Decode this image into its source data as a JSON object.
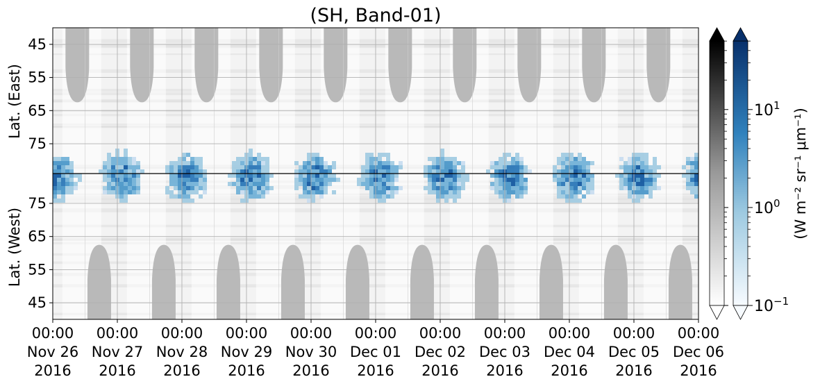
{
  "chart_data": {
    "type": "heatmap",
    "title": "(SH, Band-01)",
    "panels": [
      {
        "ylabel": "Lat. (East)",
        "yticks": [
          "45",
          "55",
          "65",
          "75"
        ],
        "ylim": [
          40,
          84
        ]
      },
      {
        "ylabel": "Lat. (West)",
        "yticks": [
          "75",
          "65",
          "55",
          "45"
        ],
        "ylim": [
          84,
          40
        ]
      }
    ],
    "xticks": [
      {
        "time": "00:00",
        "date": "Nov 26",
        "year": "2016"
      },
      {
        "time": "00:00",
        "date": "Nov 27",
        "year": "2016"
      },
      {
        "time": "00:00",
        "date": "Nov 28",
        "year": "2016"
      },
      {
        "time": "00:00",
        "date": "Nov 29",
        "year": "2016"
      },
      {
        "time": "00:00",
        "date": "Nov 30",
        "year": "2016"
      },
      {
        "time": "00:00",
        "date": "Dec 01",
        "year": "2016"
      },
      {
        "time": "00:00",
        "date": "Dec 02",
        "year": "2016"
      },
      {
        "time": "00:00",
        "date": "Dec 03",
        "year": "2016"
      },
      {
        "time": "00:00",
        "date": "Dec 04",
        "year": "2016"
      },
      {
        "time": "00:00",
        "date": "Dec 05",
        "year": "2016"
      },
      {
        "time": "00:00",
        "date": "Dec 06",
        "year": "2016"
      }
    ],
    "xlim": [
      "2016-11-26 00:00",
      "2016-12-06 00:00"
    ],
    "grid": true,
    "colorbars": [
      {
        "cmap": "grays",
        "scale": "log",
        "extend": "both"
      },
      {
        "cmap": "blues",
        "scale": "log",
        "extend": "both",
        "ticks": [
          {
            "base": "10",
            "exp": "1"
          },
          {
            "base": "10",
            "exp": "0"
          },
          {
            "base": "10",
            "exp": "−1"
          }
        ]
      }
    ],
    "colorbar_label": "(W m⁻² sr⁻¹ μm⁻¹)",
    "colors": {
      "blue_dark": "#08306b",
      "blue_mid": "#2171b5",
      "blue_light": "#c6dbef",
      "gray_mask": "#b8b8b8",
      "bg": "#f2f2f2"
    }
  }
}
